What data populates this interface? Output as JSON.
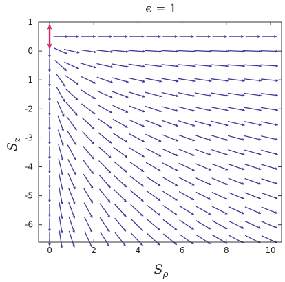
{
  "chart_data": {
    "type": "vector_field",
    "title": "ϵ = 1",
    "xlabel": {
      "base": "S",
      "sub": "ρ"
    },
    "ylabel": {
      "base": "S",
      "sub": "z"
    },
    "xlim": [
      -0.5,
      10.5
    ],
    "ylim": [
      -6.6,
      1.0
    ],
    "xticks": [
      0,
      2,
      4,
      6,
      8,
      10
    ],
    "yticks": [
      1,
      0,
      -1,
      -2,
      -3,
      -4,
      -5,
      -6
    ],
    "x_grid": [
      0,
      0.5,
      1.0,
      1.75,
      2.5,
      3.2,
      3.95,
      4.7,
      5.45,
      6.2,
      6.95,
      7.7,
      8.45,
      9.2,
      9.95
    ],
    "y_grid": [
      0.5,
      0.0,
      -0.5,
      -1.0,
      -1.5,
      -2.0,
      -2.5,
      -3.0,
      -3.5,
      -4.0,
      -4.5,
      -5.0,
      -5.5,
      -6.0,
      -6.5
    ],
    "grid": false,
    "colors": {
      "arrows": "#3b3b9a",
      "highlight": "#d6246a",
      "frame": "#333333"
    },
    "highlight_point": {
      "x": 0,
      "y": 0.5,
      "direction": "vertical double-headed"
    }
  }
}
